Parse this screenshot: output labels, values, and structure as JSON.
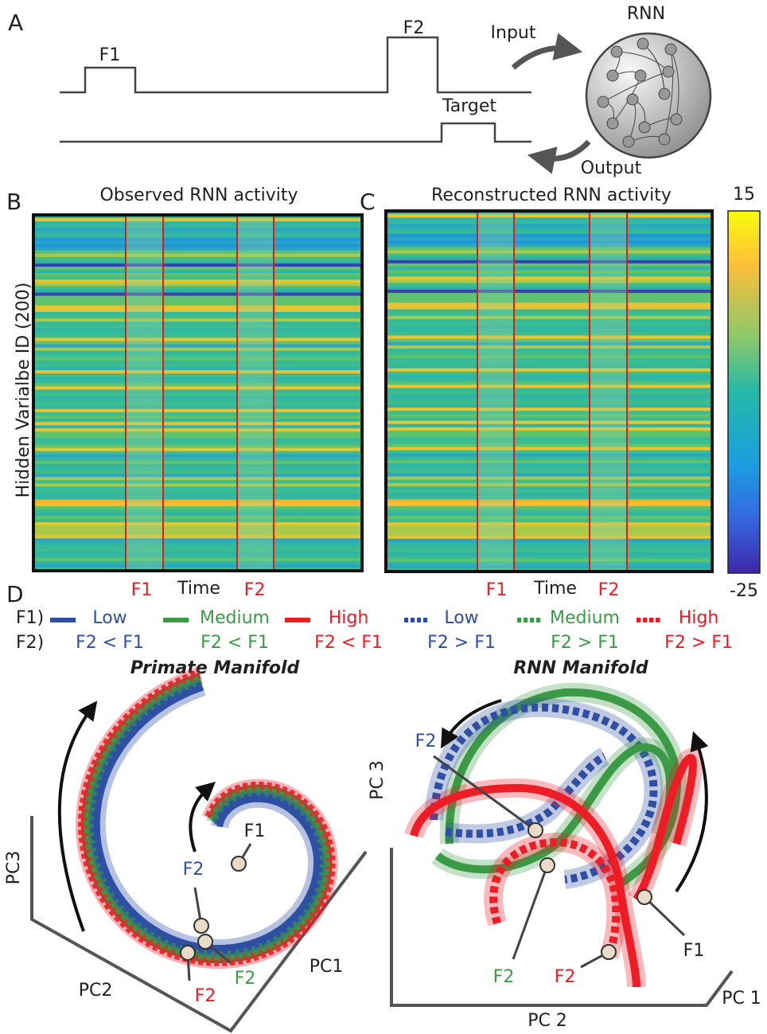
{
  "panel_a": {
    "label": "A",
    "input_pulse_1": "F1",
    "input_pulse_2": "F2",
    "target": "Target",
    "input": "Input",
    "rnn": "RNN",
    "output": "Output"
  },
  "panel_b": {
    "label": "B",
    "title": "Observed RNN activity",
    "y_label": "Hidden Varialbe ID (200)",
    "x_marks": [
      "F1",
      "Time",
      "F2"
    ]
  },
  "panel_c": {
    "label": "C",
    "title": "Reconstructed RNN activity",
    "x_marks": [
      "F1",
      "Time",
      "F2"
    ]
  },
  "colorbar": {
    "max": "15",
    "min": "-25"
  },
  "panel_d": {
    "label": "D",
    "row_labels": [
      "F1)",
      "F2)"
    ],
    "legend": [
      {
        "f1": "Low",
        "f2": "F2 < F1"
      },
      {
        "f1": "Medium",
        "f2": "F2 < F1"
      },
      {
        "f1": "High",
        "f2": "F2 < F1"
      },
      {
        "f1": "Low",
        "f2": "F2 > F1"
      },
      {
        "f1": "Medium",
        "f2": "F2 > F1"
      },
      {
        "f1": "High",
        "f2": "F2 > F1"
      }
    ],
    "primate": {
      "title": "Primate Manifold",
      "axes": [
        "PC3",
        "PC2",
        "PC1"
      ],
      "points": [
        "F1",
        "F2",
        "F2",
        "F2"
      ]
    },
    "rnn": {
      "title": "RNN Manifold",
      "axes": [
        "PC 3",
        "PC 2",
        "PC 1"
      ],
      "points": [
        "F2",
        "F2",
        "F2",
        "F1"
      ]
    }
  }
}
